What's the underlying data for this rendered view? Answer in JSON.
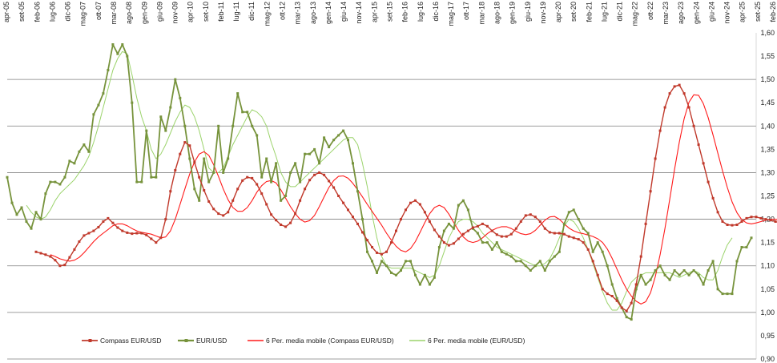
{
  "chart_data": {
    "type": "line",
    "title": "",
    "xlabel": "",
    "ylabel": "",
    "ylim": [
      0.9,
      1.6
    ],
    "y_ticks": [
      "1,60",
      "1,55",
      "1,50",
      "1,45",
      "1,40",
      "1,35",
      "1,30",
      "1,25",
      "1,20",
      "1,15",
      "1,10",
      "1,05",
      "1,00",
      "0,95",
      "0,90"
    ],
    "y_axis_side": "right",
    "x_tick_labels": [
      "apr-05",
      "set-05",
      "feb-06",
      "lug-06",
      "dic-06",
      "mag-07",
      "ott-07",
      "mar-08",
      "ago-08",
      "gen-09",
      "giu-09",
      "nov-09",
      "apr-10",
      "set-10",
      "feb-11",
      "lug-11",
      "dic-11",
      "mag-12",
      "ott-12",
      "mar-13",
      "ago-13",
      "gen-14",
      "giu-14",
      "nov-14",
      "apr-15",
      "set-15",
      "feb-16",
      "lug-16",
      "dic-16",
      "mag-17",
      "ott-17",
      "mar-18",
      "ago-18",
      "gen-19",
      "giu-19",
      "nov-19",
      "apr-20",
      "set-20",
      "feb-21",
      "lug-21",
      "dic-21",
      "mag-22",
      "ott-22",
      "mar-23",
      "ago-23",
      "gen-24",
      "giu-24",
      "nov-24",
      "apr-25",
      "set-25",
      "feb-26"
    ],
    "x_axis_position": "top",
    "gridlines": "horizontal, alternate ticks",
    "legend_position": "bottom-left",
    "colors": {
      "compass": "#c0392b",
      "eurusd": "#77933c",
      "ma_compass": "#ff1a1a",
      "ma_eurusd": "#9bd36b"
    },
    "series": [
      {
        "name": "Compass EUR/USD",
        "style": "line-with-square-markers",
        "start_index": 6,
        "values": [
          1.13,
          1.127,
          1.124,
          1.12,
          1.112,
          1.1,
          1.102,
          1.118,
          1.135,
          1.152,
          1.165,
          1.17,
          1.175,
          1.183,
          1.195,
          1.202,
          1.192,
          1.182,
          1.175,
          1.171,
          1.169,
          1.17,
          1.17,
          1.166,
          1.158,
          1.15,
          1.16,
          1.2,
          1.26,
          1.305,
          1.34,
          1.365,
          1.358,
          1.322,
          1.29,
          1.262,
          1.238,
          1.222,
          1.212,
          1.208,
          1.215,
          1.24,
          1.265,
          1.283,
          1.29,
          1.288,
          1.275,
          1.255,
          1.232,
          1.21,
          1.198,
          1.188,
          1.184,
          1.192,
          1.212,
          1.24,
          1.265,
          1.284,
          1.295,
          1.3,
          1.295,
          1.282,
          1.268,
          1.25,
          1.235,
          1.22,
          1.205,
          1.19,
          1.172,
          1.155,
          1.14,
          1.128,
          1.125,
          1.13,
          1.15,
          1.175,
          1.2,
          1.22,
          1.235,
          1.24,
          1.232,
          1.215,
          1.195,
          1.177,
          1.163,
          1.15,
          1.144,
          1.148,
          1.158,
          1.168,
          1.175,
          1.182,
          1.185,
          1.19,
          1.185,
          1.175,
          1.167,
          1.163,
          1.163,
          1.168,
          1.18,
          1.195,
          1.208,
          1.21,
          1.205,
          1.195,
          1.18,
          1.172,
          1.17,
          1.17,
          1.168,
          1.163,
          1.16,
          1.157,
          1.15,
          1.135,
          1.11,
          1.08,
          1.05,
          1.04,
          1.035,
          1.025,
          1.01,
          1.003,
          1.02,
          1.06,
          1.12,
          1.19,
          1.26,
          1.33,
          1.39,
          1.44,
          1.47,
          1.485,
          1.488,
          1.47,
          1.44,
          1.4,
          1.36,
          1.32,
          1.28,
          1.245,
          1.215,
          1.195,
          1.188,
          1.187,
          1.188,
          1.195,
          1.202,
          1.205,
          1.205,
          1.202,
          1.2,
          1.198,
          1.195,
          1.192,
          1.19
        ]
      },
      {
        "name": "EUR/USD",
        "style": "line-with-square-markers",
        "start_index": 0,
        "values": [
          1.29,
          1.235,
          1.21,
          1.225,
          1.195,
          1.18,
          1.215,
          1.2,
          1.255,
          1.28,
          1.28,
          1.275,
          1.29,
          1.325,
          1.32,
          1.345,
          1.36,
          1.345,
          1.425,
          1.445,
          1.47,
          1.52,
          1.575,
          1.555,
          1.575,
          1.55,
          1.45,
          1.28,
          1.28,
          1.39,
          1.29,
          1.29,
          1.42,
          1.39,
          1.44,
          1.5,
          1.46,
          1.4,
          1.33,
          1.265,
          1.24,
          1.33,
          1.28,
          1.3,
          1.4,
          1.3,
          1.33,
          1.4,
          1.47,
          1.43,
          1.43,
          1.4,
          1.38,
          1.29,
          1.33,
          1.28,
          1.32,
          1.24,
          1.25,
          1.3,
          1.32,
          1.28,
          1.34,
          1.34,
          1.35,
          1.32,
          1.375,
          1.355,
          1.37,
          1.38,
          1.39,
          1.37,
          1.32,
          1.26,
          1.2,
          1.13,
          1.11,
          1.085,
          1.11,
          1.1,
          1.085,
          1.08,
          1.09,
          1.11,
          1.11,
          1.08,
          1.06,
          1.08,
          1.06,
          1.075,
          1.14,
          1.175,
          1.19,
          1.18,
          1.23,
          1.24,
          1.22,
          1.18,
          1.17,
          1.15,
          1.15,
          1.135,
          1.15,
          1.13,
          1.125,
          1.12,
          1.11,
          1.11,
          1.1,
          1.09,
          1.1,
          1.11,
          1.09,
          1.11,
          1.12,
          1.13,
          1.19,
          1.215,
          1.22,
          1.2,
          1.18,
          1.17,
          1.13,
          1.15,
          1.13,
          1.1,
          1.06,
          1.03,
          1.01,
          0.99,
          0.985,
          1.05,
          1.08,
          1.06,
          1.07,
          1.09,
          1.1,
          1.08,
          1.07,
          1.09,
          1.08,
          1.09,
          1.08,
          1.09,
          1.08,
          1.06,
          1.09,
          1.11,
          1.05,
          1.04,
          1.04,
          1.04,
          1.11,
          1.14,
          1.14,
          1.16
        ]
      },
      {
        "name": "6 Per. media mobile (Compass EUR/USD)",
        "style": "line",
        "start_index": 9,
        "values": [
          1.124,
          1.12,
          1.115,
          1.112,
          1.11,
          1.112,
          1.118,
          1.128,
          1.14,
          1.152,
          1.162,
          1.17,
          1.178,
          1.186,
          1.19,
          1.19,
          1.186,
          1.18,
          1.175,
          1.172,
          1.17,
          1.168,
          1.164,
          1.16,
          1.162,
          1.175,
          1.2,
          1.232,
          1.265,
          1.297,
          1.323,
          1.34,
          1.345,
          1.337,
          1.317,
          1.292,
          1.265,
          1.242,
          1.225,
          1.217,
          1.217,
          1.225,
          1.24,
          1.258,
          1.272,
          1.281,
          1.283,
          1.278,
          1.263,
          1.245,
          1.227,
          1.212,
          1.2,
          1.194,
          1.197,
          1.208,
          1.227,
          1.248,
          1.268,
          1.283,
          1.292,
          1.293,
          1.288,
          1.277,
          1.263,
          1.248,
          1.232,
          1.217,
          1.202,
          1.187,
          1.17,
          1.155,
          1.142,
          1.133,
          1.13,
          1.137,
          1.152,
          1.172,
          1.193,
          1.212,
          1.225,
          1.23,
          1.225,
          1.211,
          1.193,
          1.176,
          1.162,
          1.153,
          1.15,
          1.153,
          1.16,
          1.169,
          1.176,
          1.181,
          1.184,
          1.184,
          1.18,
          1.174,
          1.169,
          1.167,
          1.169,
          1.176,
          1.187,
          1.198,
          1.205,
          1.206,
          1.2,
          1.19,
          1.181,
          1.175,
          1.171,
          1.169,
          1.166,
          1.163,
          1.158,
          1.15,
          1.136,
          1.116,
          1.093,
          1.07,
          1.05,
          1.035,
          1.024,
          1.018,
          1.023,
          1.042,
          1.077,
          1.124,
          1.18,
          1.243,
          1.307,
          1.366,
          1.416,
          1.451,
          1.467,
          1.466,
          1.448,
          1.418,
          1.381,
          1.342,
          1.304,
          1.268,
          1.237,
          1.214,
          1.199,
          1.192,
          1.19,
          1.192,
          1.195,
          1.198,
          1.2,
          1.2,
          1.199,
          1.197,
          1.195,
          1.193
        ]
      },
      {
        "name": "6 Per. media mobile (EUR/USD)",
        "style": "line",
        "start_index": 4,
        "values": [
          1.23,
          1.215,
          1.205,
          1.2,
          1.205,
          1.22,
          1.24,
          1.255,
          1.265,
          1.275,
          1.285,
          1.3,
          1.315,
          1.335,
          1.365,
          1.4,
          1.44,
          1.48,
          1.52,
          1.545,
          1.56,
          1.555,
          1.51,
          1.46,
          1.42,
          1.39,
          1.35,
          1.33,
          1.34,
          1.36,
          1.385,
          1.41,
          1.43,
          1.445,
          1.44,
          1.42,
          1.39,
          1.35,
          1.31,
          1.3,
          1.3,
          1.31,
          1.335,
          1.36,
          1.38,
          1.4,
          1.42,
          1.435,
          1.43,
          1.42,
          1.4,
          1.365,
          1.335,
          1.3,
          1.28,
          1.27,
          1.27,
          1.28,
          1.29,
          1.3,
          1.31,
          1.32,
          1.33,
          1.34,
          1.35,
          1.36,
          1.37,
          1.375,
          1.375,
          1.36,
          1.32,
          1.27,
          1.21,
          1.16,
          1.12,
          1.1,
          1.095,
          1.095,
          1.095,
          1.095,
          1.095,
          1.09,
          1.085,
          1.08,
          1.075,
          1.08,
          1.1,
          1.13,
          1.16,
          1.18,
          1.195,
          1.2,
          1.2,
          1.195,
          1.185,
          1.17,
          1.16,
          1.15,
          1.14,
          1.135,
          1.13,
          1.125,
          1.12,
          1.115,
          1.11,
          1.105,
          1.1,
          1.1,
          1.105,
          1.115,
          1.135,
          1.16,
          1.185,
          1.2,
          1.195,
          1.18,
          1.16,
          1.135,
          1.105,
          1.075,
          1.045,
          1.02,
          1.005,
          1.005,
          1.02,
          1.045,
          1.065,
          1.075,
          1.08,
          1.085,
          1.085,
          1.085,
          1.085,
          1.085,
          1.085,
          1.08,
          1.075,
          1.08,
          1.085,
          1.09,
          1.085,
          1.075,
          1.07,
          1.07,
          1.09,
          1.12,
          1.145,
          1.16
        ]
      }
    ]
  }
}
